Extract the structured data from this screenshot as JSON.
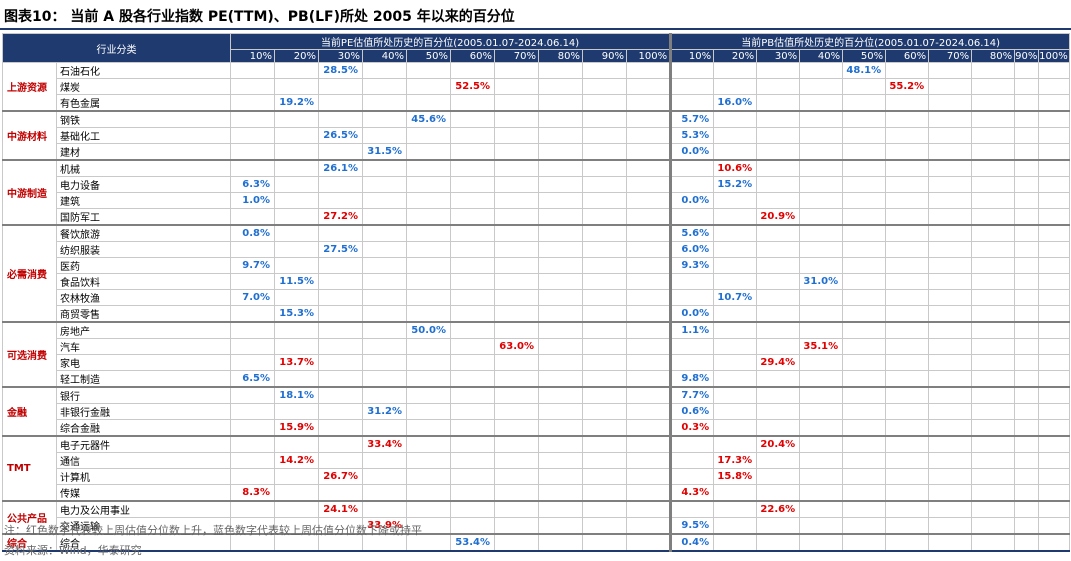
{
  "title": "图表10：  当前 A 股各行业指数 PE(TTM)、PB(LF)所处 2005 年以来的百分位",
  "header": {
    "corner": "行业分类",
    "pe_title": "当前PE估值所处历史的百分位(2005.01.07-2024.06.14)",
    "pb_title": "当前PB估值所处历史的百分位(2005.01.07-2024.06.14)",
    "pe_bins": [
      "10%",
      "20%",
      "30%",
      "40%",
      "50%",
      "60%",
      "70%",
      "80%",
      "90%",
      "100%"
    ],
    "pb_bins": [
      "10%",
      "20%",
      "30%",
      "40%",
      "50%",
      "60%",
      "70%",
      "80%",
      "90%",
      "100%"
    ]
  },
  "colors": {
    "up": "#e00000",
    "down": "#1f6fd1",
    "header_bg": "#1f3a6e",
    "category": "#c00000"
  },
  "groups": [
    {
      "category": "上游资源",
      "rows": [
        {
          "name": "石油石化",
          "pe": {
            "value": "28.5%",
            "col": 2,
            "dir": "down"
          },
          "pb": {
            "value": "48.1%",
            "col": 4,
            "dir": "down"
          }
        },
        {
          "name": "煤炭",
          "pe": {
            "value": "52.5%",
            "col": 5,
            "dir": "up"
          },
          "pb": {
            "value": "55.2%",
            "col": 5,
            "dir": "up"
          }
        },
        {
          "name": "有色金属",
          "pe": {
            "value": "19.2%",
            "col": 1,
            "dir": "down"
          },
          "pb": {
            "value": "16.0%",
            "col": 1,
            "dir": "down"
          }
        }
      ]
    },
    {
      "category": "中游材料",
      "rows": [
        {
          "name": "钢铁",
          "pe": {
            "value": "45.6%",
            "col": 4,
            "dir": "down"
          },
          "pb": {
            "value": "5.7%",
            "col": 0,
            "dir": "down"
          }
        },
        {
          "name": "基础化工",
          "pe": {
            "value": "26.5%",
            "col": 2,
            "dir": "down"
          },
          "pb": {
            "value": "5.3%",
            "col": 0,
            "dir": "down"
          }
        },
        {
          "name": "建材",
          "pe": {
            "value": "31.5%",
            "col": 3,
            "dir": "down"
          },
          "pb": {
            "value": "0.0%",
            "col": 0,
            "dir": "down"
          }
        }
      ]
    },
    {
      "category": "中游制造",
      "rows": [
        {
          "name": "机械",
          "pe": {
            "value": "26.1%",
            "col": 2,
            "dir": "down"
          },
          "pb": {
            "value": "10.6%",
            "col": 1,
            "dir": "up"
          }
        },
        {
          "name": "电力设备",
          "pe": {
            "value": "6.3%",
            "col": 0,
            "dir": "down"
          },
          "pb": {
            "value": "15.2%",
            "col": 1,
            "dir": "down"
          }
        },
        {
          "name": "建筑",
          "pe": {
            "value": "1.0%",
            "col": 0,
            "dir": "down"
          },
          "pb": {
            "value": "0.0%",
            "col": 0,
            "dir": "down"
          }
        },
        {
          "name": "国防军工",
          "pe": {
            "value": "27.2%",
            "col": 2,
            "dir": "up"
          },
          "pb": {
            "value": "20.9%",
            "col": 2,
            "dir": "up"
          }
        }
      ]
    },
    {
      "category": "必需消费",
      "rows": [
        {
          "name": "餐饮旅游",
          "pe": {
            "value": "0.8%",
            "col": 0,
            "dir": "down"
          },
          "pb": {
            "value": "5.6%",
            "col": 0,
            "dir": "down"
          }
        },
        {
          "name": "纺织服装",
          "pe": {
            "value": "27.5%",
            "col": 2,
            "dir": "down"
          },
          "pb": {
            "value": "6.0%",
            "col": 0,
            "dir": "down"
          }
        },
        {
          "name": "医药",
          "pe": {
            "value": "9.7%",
            "col": 0,
            "dir": "down"
          },
          "pb": {
            "value": "9.3%",
            "col": 0,
            "dir": "down"
          }
        },
        {
          "name": "食品饮料",
          "pe": {
            "value": "11.5%",
            "col": 1,
            "dir": "down"
          },
          "pb": {
            "value": "31.0%",
            "col": 3,
            "dir": "down"
          }
        },
        {
          "name": "农林牧渔",
          "pe": {
            "value": "7.0%",
            "col": 0,
            "dir": "down"
          },
          "pb": {
            "value": "10.7%",
            "col": 1,
            "dir": "down"
          }
        },
        {
          "name": "商贸零售",
          "pe": {
            "value": "15.3%",
            "col": 1,
            "dir": "down"
          },
          "pb": {
            "value": "0.0%",
            "col": 0,
            "dir": "down"
          }
        }
      ]
    },
    {
      "category": "可选消费",
      "rows": [
        {
          "name": "房地产",
          "pe": {
            "value": "50.0%",
            "col": 4,
            "dir": "down"
          },
          "pb": {
            "value": "1.1%",
            "col": 0,
            "dir": "down"
          }
        },
        {
          "name": "汽车",
          "pe": {
            "value": "63.0%",
            "col": 6,
            "dir": "up"
          },
          "pb": {
            "value": "35.1%",
            "col": 3,
            "dir": "up"
          }
        },
        {
          "name": "家电",
          "pe": {
            "value": "13.7%",
            "col": 1,
            "dir": "up"
          },
          "pb": {
            "value": "29.4%",
            "col": 2,
            "dir": "up"
          }
        },
        {
          "name": "轻工制造",
          "pe": {
            "value": "6.5%",
            "col": 0,
            "dir": "down"
          },
          "pb": {
            "value": "9.8%",
            "col": 0,
            "dir": "down"
          }
        }
      ]
    },
    {
      "category": "金融",
      "rows": [
        {
          "name": "银行",
          "pe": {
            "value": "18.1%",
            "col": 1,
            "dir": "down"
          },
          "pb": {
            "value": "7.7%",
            "col": 0,
            "dir": "down"
          }
        },
        {
          "name": "非银行金融",
          "pe": {
            "value": "31.2%",
            "col": 3,
            "dir": "down"
          },
          "pb": {
            "value": "0.6%",
            "col": 0,
            "dir": "down"
          }
        },
        {
          "name": "综合金融",
          "pe": {
            "value": "15.9%",
            "col": 1,
            "dir": "up"
          },
          "pb": {
            "value": "0.3%",
            "col": 0,
            "dir": "up"
          }
        }
      ]
    },
    {
      "category": "TMT",
      "rows": [
        {
          "name": "电子元器件",
          "pe": {
            "value": "33.4%",
            "col": 3,
            "dir": "up"
          },
          "pb": {
            "value": "20.4%",
            "col": 2,
            "dir": "up"
          }
        },
        {
          "name": "通信",
          "pe": {
            "value": "14.2%",
            "col": 1,
            "dir": "up"
          },
          "pb": {
            "value": "17.3%",
            "col": 1,
            "dir": "up"
          }
        },
        {
          "name": "计算机",
          "pe": {
            "value": "26.7%",
            "col": 2,
            "dir": "up"
          },
          "pb": {
            "value": "15.8%",
            "col": 1,
            "dir": "up"
          }
        },
        {
          "name": "传媒",
          "pe": {
            "value": "8.3%",
            "col": 0,
            "dir": "up"
          },
          "pb": {
            "value": "4.3%",
            "col": 0,
            "dir": "up"
          }
        }
      ]
    },
    {
      "category": "公共产品",
      "rows": [
        {
          "name": "电力及公用事业",
          "pe": {
            "value": "24.1%",
            "col": 2,
            "dir": "up"
          },
          "pb": {
            "value": "22.6%",
            "col": 2,
            "dir": "up"
          }
        },
        {
          "name": "交通运输",
          "pe": {
            "value": "33.9%",
            "col": 3,
            "dir": "up"
          },
          "pb": {
            "value": "9.5%",
            "col": 0,
            "dir": "down"
          }
        }
      ]
    },
    {
      "category": "综合",
      "rows": [
        {
          "name": "综合",
          "pe": {
            "value": "53.4%",
            "col": 5,
            "dir": "down"
          },
          "pb": {
            "value": "0.4%",
            "col": 0,
            "dir": "down"
          }
        }
      ]
    }
  ],
  "notes": {
    "note": "注：红色数字代表较上周估值分位数上升，蓝色数字代表较上周估值分位数下降或持平",
    "source": "资料来源：Wind，华泰研究"
  }
}
